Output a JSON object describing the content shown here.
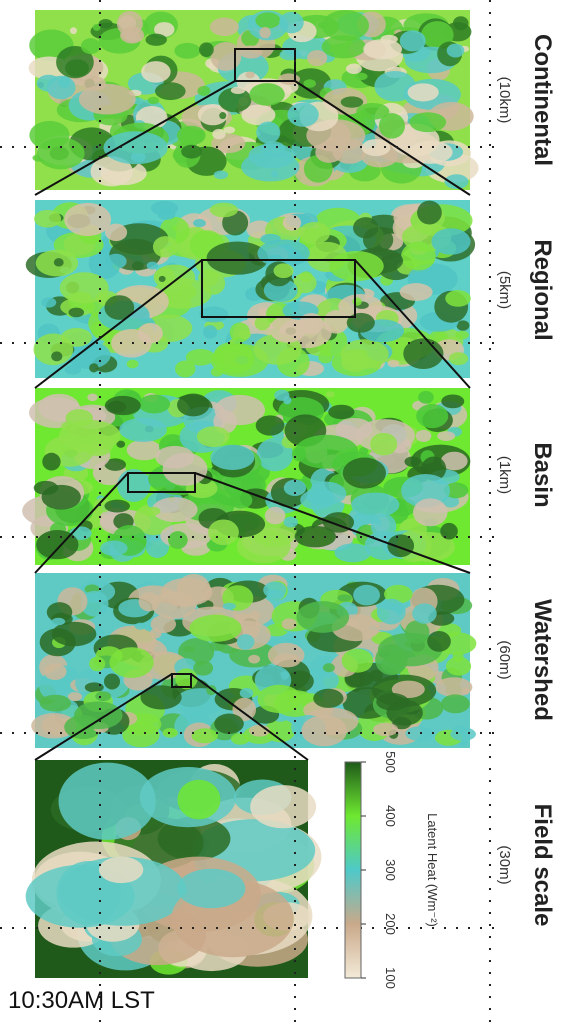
{
  "panels": [
    {
      "title": "Continental",
      "resolution": "(10km)"
    },
    {
      "title": "Regional",
      "resolution": "(5km)"
    },
    {
      "title": "Basin",
      "resolution": "(1km)"
    },
    {
      "title": "Watershed",
      "resolution": "(60m)"
    },
    {
      "title": "Field scale",
      "resolution": "(30m)"
    }
  ],
  "colorbar": {
    "label": "Latent Heat (Wm⁻²)",
    "ticks": [
      100,
      200,
      300,
      400,
      500
    ]
  },
  "time_label": "10:30AM LST"
}
